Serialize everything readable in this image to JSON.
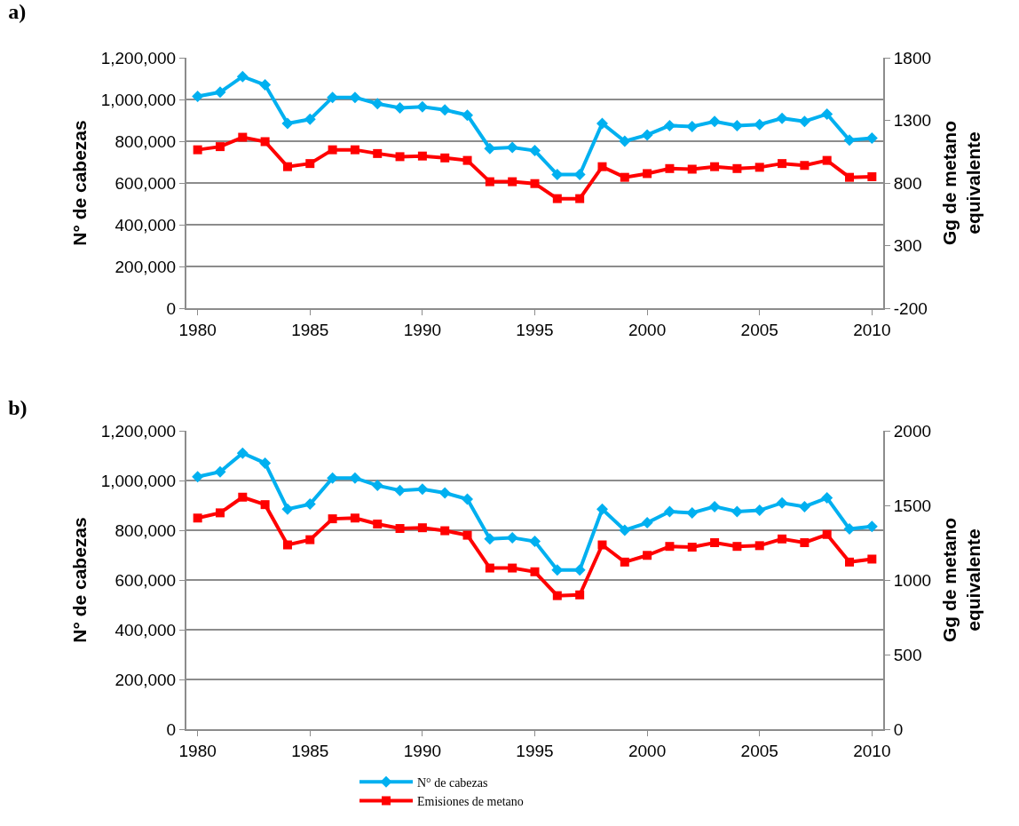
{
  "chart_data": [
    {
      "type": "line",
      "title": "a)",
      "x": [
        1980,
        1981,
        1982,
        1983,
        1984,
        1985,
        1986,
        1987,
        1988,
        1989,
        1990,
        1991,
        1992,
        1993,
        1994,
        1995,
        1996,
        1997,
        1998,
        1999,
        2000,
        2001,
        2002,
        2003,
        2004,
        2005,
        2006,
        2007,
        2008,
        2009,
        2010
      ],
      "series": [
        {
          "color": "#ff0000",
          "marker": "square",
          "axis": "y2",
          "values": [
            1065,
            1090,
            1165,
            1130,
            930,
            955,
            1065,
            1065,
            1035,
            1010,
            1015,
            1000,
            980,
            810,
            810,
            795,
            675,
            675,
            930,
            845,
            875,
            915,
            910,
            930,
            915,
            925,
            955,
            940,
            980,
            845,
            850
          ]
        },
        {
          "color": "#00b0f0",
          "marker": "diamond",
          "values": [
            1015000,
            1035000,
            1110000,
            1070000,
            885000,
            905000,
            1010000,
            1010000,
            980000,
            960000,
            965000,
            950000,
            925000,
            765000,
            770000,
            755000,
            640000,
            640000,
            885000,
            800000,
            830000,
            875000,
            870000,
            895000,
            875000,
            880000,
            910000,
            895000,
            930000,
            805000,
            815000
          ]
        }
      ],
      "ylabel": "N° de cabezas",
      "y2label": "Gg de metano\nequivalente",
      "xlim": [
        1979.5,
        2010.5
      ],
      "xticks": [
        1980,
        1985,
        1990,
        1995,
        2000,
        2005,
        2010
      ],
      "ylim": [
        0,
        1200000
      ],
      "yticks": [
        {
          "value": 0,
          "label": "0"
        },
        {
          "value": 200000,
          "label": "200,000"
        },
        {
          "value": 400000,
          "label": "400,000"
        },
        {
          "value": 600000,
          "label": "600,000"
        },
        {
          "value": 800000,
          "label": "800,000"
        },
        {
          "value": 1000000,
          "label": "1,000,000"
        },
        {
          "value": 1200000,
          "label": "1,200,000"
        }
      ],
      "y2lim": [
        -200,
        1800
      ],
      "y2ticks": [
        -200,
        300,
        800,
        1300,
        1800
      ],
      "grid": "y",
      "legend": false,
      "line_style": "solid"
    },
    {
      "type": "line",
      "title": "b)",
      "x": [
        1980,
        1981,
        1982,
        1983,
        1984,
        1985,
        1986,
        1987,
        1988,
        1989,
        1990,
        1991,
        1992,
        1993,
        1994,
        1995,
        1996,
        1997,
        1998,
        1999,
        2000,
        2001,
        2002,
        2003,
        2004,
        2005,
        2006,
        2007,
        2008,
        2009,
        2010
      ],
      "series": [
        {
          "name": "Emisiones de metano",
          "color": "#ff0000",
          "marker": "square",
          "axis": "y2",
          "values": [
            1415,
            1450,
            1555,
            1505,
            1235,
            1270,
            1410,
            1415,
            1375,
            1345,
            1350,
            1330,
            1300,
            1080,
            1080,
            1055,
            895,
            900,
            1235,
            1120,
            1165,
            1225,
            1220,
            1250,
            1225,
            1230,
            1275,
            1250,
            1305,
            1120,
            1140
          ]
        },
        {
          "name": "N° de cabezas",
          "color": "#00b0f0",
          "marker": "diamond",
          "values": [
            1015000,
            1035000,
            1110000,
            1070000,
            885000,
            905000,
            1010000,
            1010000,
            980000,
            960000,
            965000,
            950000,
            925000,
            765000,
            770000,
            755000,
            640000,
            640000,
            885000,
            800000,
            830000,
            875000,
            870000,
            895000,
            875000,
            880000,
            910000,
            895000,
            930000,
            805000,
            815000
          ]
        }
      ],
      "ylabel": "N° de cabezas",
      "y2label": "Gg de metano\nequivalente",
      "xlim": [
        1979.5,
        2010.5
      ],
      "xticks": [
        1980,
        1985,
        1990,
        1995,
        2000,
        2005,
        2010
      ],
      "ylim": [
        0,
        1200000
      ],
      "yticks": [
        {
          "value": 0,
          "label": "0"
        },
        {
          "value": 200000,
          "label": "200,000"
        },
        {
          "value": 400000,
          "label": "400,000"
        },
        {
          "value": 600000,
          "label": "600,000"
        },
        {
          "value": 800000,
          "label": "800,000"
        },
        {
          "value": 1000000,
          "label": "1,000,000"
        },
        {
          "value": 1200000,
          "label": "1,200,000"
        }
      ],
      "y2lim": [
        0,
        2000
      ],
      "y2ticks": [
        0,
        500,
        1000,
        1500,
        2000
      ],
      "grid": "y",
      "legend": "bottom",
      "line_style": "solid"
    }
  ]
}
